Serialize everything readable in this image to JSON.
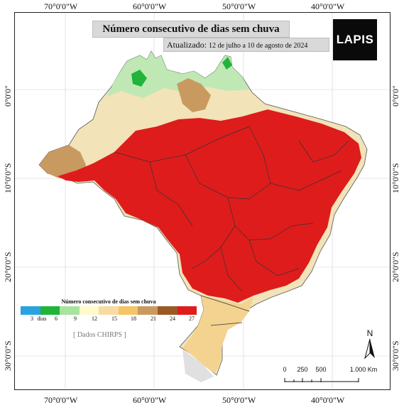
{
  "map": {
    "title": "Número consecutivo de dias sem chuva",
    "updated_label": "Atualizado:",
    "updated_range": "12 de julho a 10 de agosto de 2024",
    "logo_text": "LAPIS",
    "source_note": "[ Dados CHIRPS ]",
    "north_label": "N"
  },
  "axes": {
    "lon_labels": [
      "70°0'0\"W",
      "60°0'0\"W",
      "50°0'0\"W",
      "40°0'0\"W"
    ],
    "lat_labels": [
      "0°0'0\"",
      "10°0'0\"S",
      "20°0'0\"S",
      "30°0'0\"S"
    ]
  },
  "legend": {
    "title": "Número consecutivo de dias sem chuva",
    "unit_label": "dias",
    "values": [
      "3",
      "6",
      "9",
      "12",
      "15",
      "18",
      "21",
      "24",
      "27"
    ],
    "colors": [
      "#29a3df",
      "#20b43a",
      "#a9e3a0",
      "#fffacc",
      "#f7dba3",
      "#f3c566",
      "#c99a60",
      "#9b5a22",
      "#de1c1c"
    ]
  },
  "scale_bar": {
    "labels": [
      "0",
      "250",
      "500",
      "1.000 Km"
    ]
  }
}
